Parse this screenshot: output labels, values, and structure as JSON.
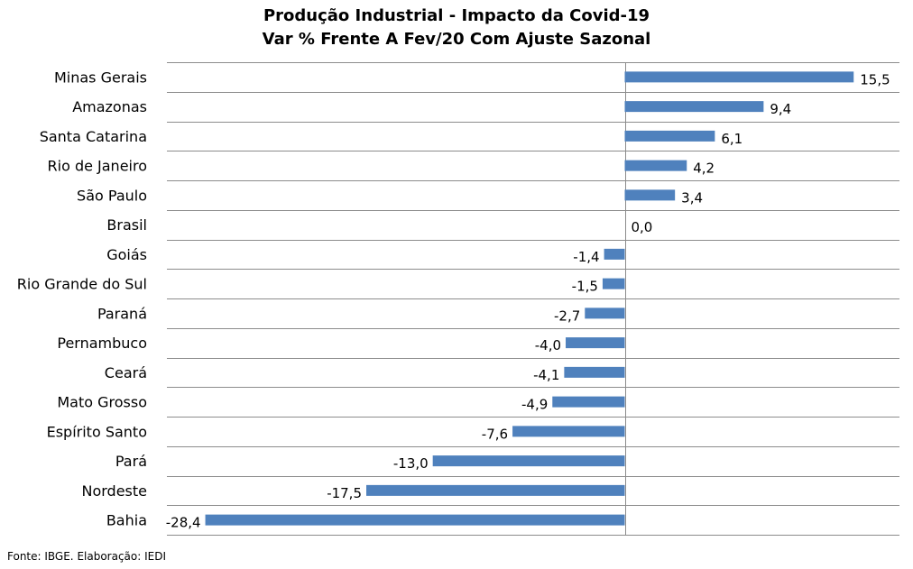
{
  "chart_data": {
    "type": "bar",
    "orientation": "horizontal",
    "title": "Produção Industrial - Impacto da Covid-19",
    "subtitle": "Var % Frente A Fev/20 Com Ajuste Sazonal",
    "categories": [
      "Minas Gerais",
      "Amazonas",
      "Santa Catarina",
      "Rio de Janeiro",
      "São Paulo",
      "Brasil",
      "Goiás",
      "Rio Grande do Sul",
      "Paraná",
      "Pernambuco",
      "Ceará",
      "Mato Grosso",
      "Espírito Santo",
      "Pará",
      "Nordeste",
      "Bahia"
    ],
    "values": [
      15.5,
      9.4,
      6.1,
      4.2,
      3.4,
      0.0,
      -1.4,
      -1.5,
      -2.7,
      -4.0,
      -4.1,
      -4.9,
      -7.6,
      -13.0,
      -17.5,
      -28.4
    ],
    "value_labels": [
      "15,5",
      "9,4",
      "6,1",
      "4,2",
      "3,4",
      "0,0",
      "-1,4",
      "-1,5",
      "-2,7",
      "-4,0",
      "-4,1",
      "-4,9",
      "-7,6",
      "-13,0",
      "-17,5",
      "-28,4"
    ],
    "xlim": [
      -31.0,
      18.6
    ],
    "grid": true,
    "bar_color": "#4f81bd",
    "xlabel": "",
    "ylabel": ""
  },
  "source": "Fonte: IBGE. Elaboração: IEDI"
}
